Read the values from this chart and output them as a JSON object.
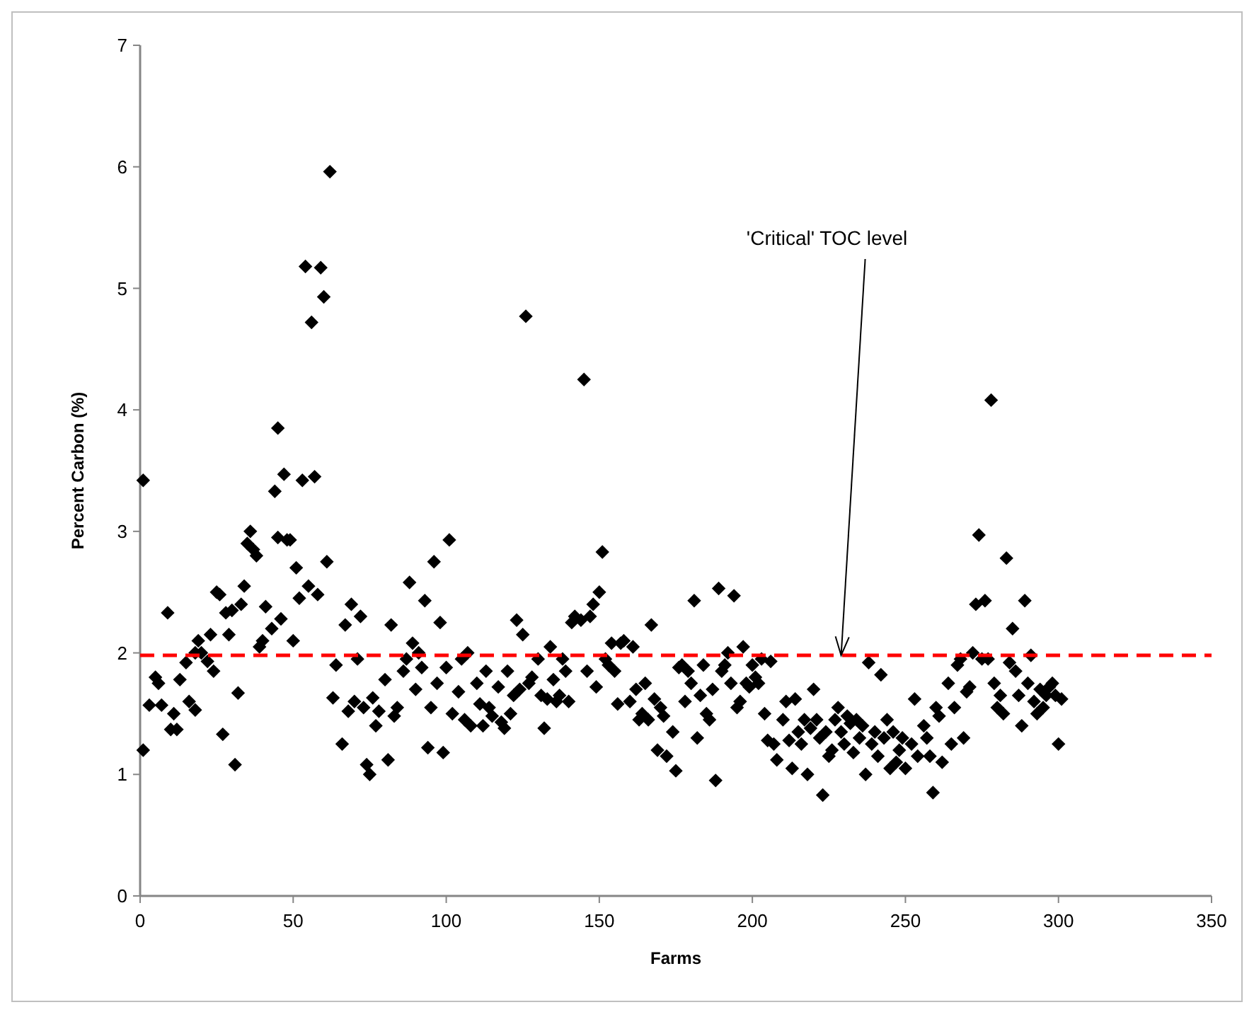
{
  "chart_data": {
    "type": "scatter",
    "xlabel": "Farms",
    "ylabel": "Percent Carbon (%)",
    "xlim": [
      0,
      350
    ],
    "xticks": [
      0,
      50,
      100,
      150,
      200,
      250,
      300,
      350
    ],
    "ylim": [
      0,
      7
    ],
    "yticks": [
      0,
      1,
      2,
      3,
      4,
      5,
      6,
      7
    ],
    "grid": false,
    "marker": "diamond",
    "series": [
      {
        "color": "#000000",
        "x": [
          1,
          1,
          3,
          5,
          6,
          7,
          9,
          10,
          11,
          12,
          13,
          15,
          16,
          18,
          18,
          19,
          20,
          22,
          23,
          24,
          25,
          26,
          27,
          28,
          29,
          30,
          31,
          32,
          33,
          34,
          35,
          36,
          37,
          38,
          39,
          40,
          41,
          43,
          44,
          45,
          45,
          46,
          47,
          48,
          49,
          50,
          51,
          52,
          53,
          54,
          55,
          56,
          57,
          58,
          59,
          60,
          61,
          62,
          63,
          64,
          66,
          67,
          68,
          69,
          70,
          71,
          72,
          73,
          74,
          75,
          76,
          77,
          78,
          80,
          81,
          82,
          83,
          84,
          86,
          87,
          88,
          89,
          90,
          91,
          92,
          93,
          94,
          95,
          96,
          97,
          98,
          99,
          100,
          101,
          102,
          104,
          105,
          106,
          107,
          108,
          110,
          111,
          112,
          113,
          114,
          115,
          117,
          118,
          119,
          120,
          121,
          122,
          123,
          124,
          125,
          126,
          127,
          128,
          130,
          131,
          132,
          133,
          134,
          135,
          136,
          137,
          138,
          139,
          140,
          141,
          142,
          144,
          145,
          146,
          147,
          148,
          149,
          150,
          151,
          152,
          153,
          154,
          155,
          156,
          157,
          158,
          160,
          161,
          162,
          163,
          164,
          165,
          166,
          167,
          168,
          169,
          170,
          171,
          172,
          174,
          175,
          176,
          177,
          178,
          179,
          180,
          181,
          182,
          183,
          184,
          185,
          186,
          187,
          188,
          189,
          190,
          191,
          192,
          193,
          194,
          195,
          196,
          197,
          198,
          199,
          200,
          201,
          202,
          203,
          204,
          205,
          206,
          207,
          208,
          210,
          211,
          212,
          213,
          214,
          215,
          216,
          217,
          218,
          219,
          220,
          221,
          222,
          223,
          224,
          225,
          226,
          227,
          228,
          229,
          230,
          231,
          232,
          233,
          234,
          235,
          236,
          237,
          238,
          239,
          240,
          241,
          242,
          243,
          244,
          245,
          246,
          247,
          248,
          249,
          250,
          252,
          253,
          254,
          256,
          257,
          258,
          259,
          260,
          261,
          262,
          264,
          265,
          266,
          267,
          268,
          269,
          270,
          271,
          272,
          273,
          274,
          275,
          276,
          277,
          278,
          279,
          280,
          281,
          282,
          283,
          284,
          285,
          286,
          287,
          288,
          289,
          290,
          291,
          292,
          293,
          294,
          295,
          296,
          297,
          298,
          299,
          300,
          301
        ],
        "values": [
          3.42,
          1.2,
          1.57,
          1.8,
          1.75,
          1.57,
          2.33,
          1.37,
          1.5,
          1.37,
          1.78,
          1.92,
          1.6,
          1.53,
          2.0,
          2.1,
          2.0,
          1.93,
          2.15,
          1.85,
          2.5,
          2.48,
          1.33,
          2.33,
          2.15,
          2.35,
          1.08,
          1.67,
          2.4,
          2.55,
          2.9,
          3.0,
          2.85,
          2.8,
          2.05,
          2.1,
          2.38,
          2.2,
          3.33,
          2.95,
          3.85,
          2.28,
          3.47,
          2.93,
          2.93,
          2.1,
          2.7,
          2.45,
          3.42,
          5.18,
          2.55,
          4.72,
          3.45,
          2.48,
          5.17,
          4.93,
          2.75,
          5.96,
          1.63,
          1.9,
          1.25,
          2.23,
          1.52,
          2.4,
          1.6,
          1.95,
          2.3,
          1.55,
          1.08,
          1.0,
          1.63,
          1.4,
          1.52,
          1.78,
          1.12,
          2.23,
          1.48,
          1.55,
          1.85,
          1.95,
          2.58,
          2.08,
          1.7,
          2.0,
          1.88,
          2.43,
          1.22,
          1.55,
          2.75,
          1.75,
          2.25,
          1.18,
          1.88,
          2.93,
          1.5,
          1.68,
          1.95,
          1.45,
          2.0,
          1.4,
          1.75,
          1.58,
          1.4,
          1.85,
          1.55,
          1.48,
          1.72,
          1.43,
          1.38,
          1.85,
          1.5,
          1.65,
          2.27,
          1.7,
          2.15,
          4.77,
          1.75,
          1.8,
          1.95,
          1.65,
          1.38,
          1.62,
          2.05,
          1.78,
          1.6,
          1.65,
          1.95,
          1.85,
          1.6,
          2.25,
          2.3,
          2.27,
          4.25,
          1.85,
          2.3,
          2.4,
          1.72,
          2.5,
          2.83,
          1.95,
          1.9,
          2.08,
          1.85,
          1.58,
          2.08,
          2.1,
          1.6,
          2.05,
          1.7,
          1.45,
          1.5,
          1.75,
          1.45,
          2.23,
          1.62,
          1.2,
          1.55,
          1.48,
          1.15,
          1.35,
          1.03,
          1.88,
          1.9,
          1.6,
          1.85,
          1.75,
          2.43,
          1.3,
          1.65,
          1.9,
          1.5,
          1.45,
          1.7,
          0.95,
          2.53,
          1.85,
          1.9,
          2.0,
          1.75,
          2.47,
          1.55,
          1.6,
          2.05,
          1.75,
          1.72,
          1.9,
          1.8,
          1.75,
          1.95,
          1.5,
          1.28,
          1.93,
          1.25,
          1.12,
          1.45,
          1.6,
          1.28,
          1.05,
          1.62,
          1.35,
          1.25,
          1.45,
          1.0,
          1.38,
          1.7,
          1.45,
          1.3,
          0.83,
          1.35,
          1.15,
          1.2,
          1.45,
          1.55,
          1.35,
          1.25,
          1.48,
          1.42,
          1.18,
          1.45,
          1.3,
          1.4,
          1.0,
          1.92,
          1.25,
          1.35,
          1.15,
          1.82,
          1.3,
          1.45,
          1.05,
          1.35,
          1.1,
          1.2,
          1.3,
          1.05,
          1.25,
          1.62,
          1.15,
          1.4,
          1.3,
          1.15,
          0.85,
          1.55,
          1.48,
          1.1,
          1.75,
          1.25,
          1.55,
          1.9,
          1.95,
          1.3,
          1.68,
          1.72,
          2.0,
          2.4,
          2.97,
          1.95,
          2.43,
          1.95,
          4.08,
          1.75,
          1.55,
          1.65,
          1.5,
          2.78,
          1.92,
          2.2,
          1.85,
          1.65,
          1.4,
          2.43,
          1.75,
          1.98,
          1.6,
          1.5,
          1.7,
          1.55,
          1.65,
          1.72,
          1.75,
          1.65,
          1.25,
          1.62
        ]
      }
    ],
    "ref_lines": [
      {
        "axis": "y",
        "value": 1.98,
        "color": "#ff0000",
        "line_style": "dashed"
      }
    ],
    "annotations": [
      {
        "text": "'Critical' TOC level",
        "x": 229,
        "y": 1.98
      }
    ]
  }
}
